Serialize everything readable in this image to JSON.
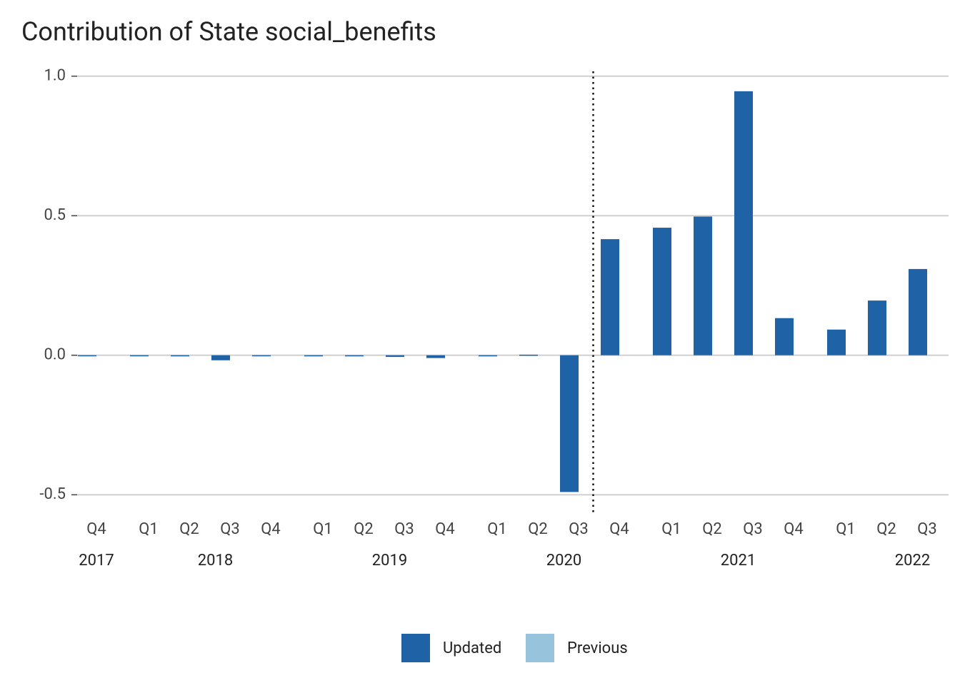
{
  "chart_data": {
    "type": "bar",
    "title": "Contribution of State social_benefits",
    "categories": [
      "Q4",
      "Q1",
      "Q2",
      "Q3",
      "Q4",
      "Q1",
      "Q2",
      "Q3",
      "Q4",
      "Q1",
      "Q2",
      "Q3",
      "Q4",
      "Q1",
      "Q2",
      "Q3",
      "Q4",
      "Q1",
      "Q2",
      "Q3"
    ],
    "years": [
      "2017",
      "2018",
      "2019",
      "2020",
      "2021",
      "2022"
    ],
    "series": [
      {
        "name": "Updated",
        "color": "#1f63a6",
        "values": [
          -0.003,
          -0.002,
          -0.004,
          -0.018,
          -0.002,
          -0.004,
          -0.004,
          -0.006,
          -0.01,
          -0.004,
          0.002,
          -0.49,
          0.416,
          0.457,
          0.497,
          0.946,
          0.133,
          0.092,
          0.196,
          0.309
        ]
      },
      {
        "name": "Previous",
        "color": "#98c3dd",
        "values": [
          null,
          null,
          null,
          null,
          null,
          null,
          null,
          null,
          null,
          null,
          null,
          null,
          null,
          null,
          null,
          null,
          null,
          null,
          null,
          null
        ]
      }
    ],
    "ylim": [
      -0.53,
      1.03
    ],
    "yticks": [
      {
        "value": 1,
        "label": "1.0"
      },
      0.5,
      {
        "value": 0,
        "label": "0.0"
      },
      -0.5
    ],
    "grid": true
  }
}
